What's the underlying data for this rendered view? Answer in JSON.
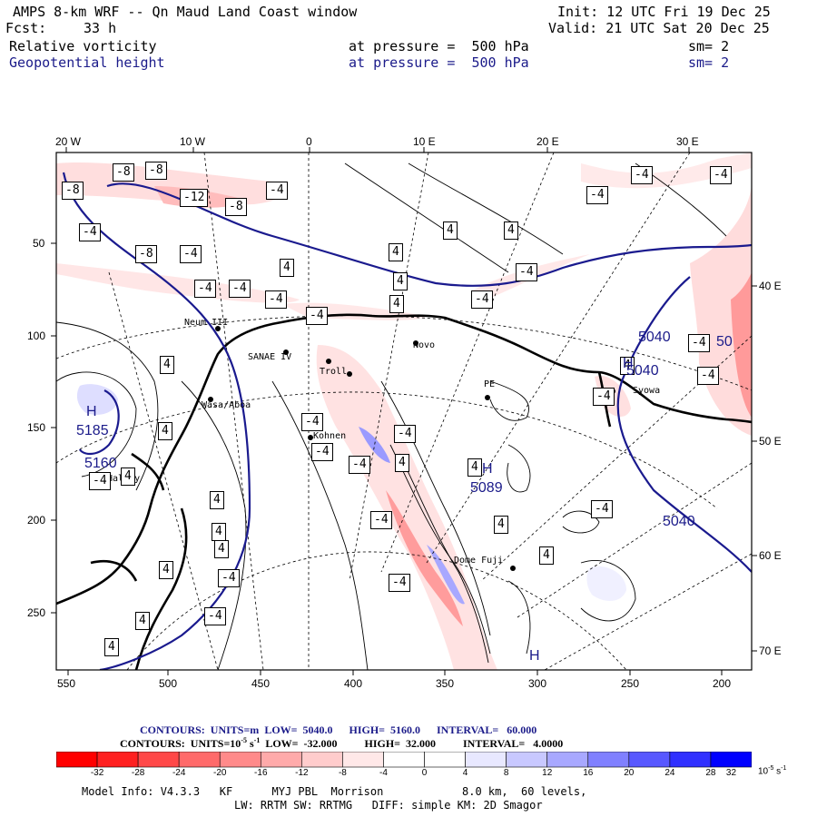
{
  "header": {
    "title": "AMPS 8-km WRF -- Qn Maud Land Coast window",
    "init": "Init: 12 UTC Fri 19 Dec 25",
    "fcst_label": "Fcst:",
    "fcst_value": "33 h",
    "valid": "Valid: 21 UTC Sat 20 Dec 25",
    "field1": {
      "name": "Relative vorticity",
      "pressure": "at pressure =  500 hPa",
      "sm": "sm= 2"
    },
    "field2": {
      "name": "Geopotential height",
      "pressure": "at pressure =  500 hPa",
      "sm": "sm= 2"
    }
  },
  "map": {
    "top_axis": [
      "20 W",
      "10 W",
      "0",
      "10 E",
      "20 E",
      "30 E"
    ],
    "left_axis": [
      "50",
      "100",
      "150",
      "200",
      "250"
    ],
    "bottom_axis": [
      "550",
      "500",
      "450",
      "400",
      "350",
      "300",
      "250",
      "200"
    ],
    "right_axis": [
      "40 E",
      "50 E",
      "60 E",
      "70 E"
    ],
    "stations": [
      {
        "name": "Neum III"
      },
      {
        "name": "SANAE IV"
      },
      {
        "name": "Novo"
      },
      {
        "name": "PE"
      },
      {
        "name": "Syowa"
      },
      {
        "name": "Kohnen"
      },
      {
        "name": "Wasa/Aboa"
      },
      {
        "name": "Halley"
      },
      {
        "name": "Dome Fuji"
      },
      {
        "name": "Troll"
      }
    ],
    "vort_labels": [
      {
        "text": "-8"
      },
      {
        "text": "-8"
      },
      {
        "text": "-8"
      },
      {
        "text": "-4"
      },
      {
        "text": "-12"
      },
      {
        "text": "-8"
      },
      {
        "text": "-4"
      },
      {
        "text": "-8"
      },
      {
        "text": "-4"
      },
      {
        "text": "-4"
      },
      {
        "text": "-4"
      },
      {
        "text": "-4"
      },
      {
        "text": "-4"
      },
      {
        "text": "4"
      },
      {
        "text": "4"
      },
      {
        "text": "4"
      },
      {
        "text": "4"
      },
      {
        "text": "-4"
      },
      {
        "text": "-4"
      },
      {
        "text": "-4"
      },
      {
        "text": "-4"
      },
      {
        "text": "-4"
      },
      {
        "text": "4"
      },
      {
        "text": "4"
      },
      {
        "text": "4"
      },
      {
        "text": "-4"
      },
      {
        "text": "-4"
      },
      {
        "text": "-4"
      },
      {
        "text": "-4"
      },
      {
        "text": "-4"
      },
      {
        "text": "-4"
      },
      {
        "text": "4"
      },
      {
        "text": "4"
      },
      {
        "text": "4"
      },
      {
        "text": "4"
      },
      {
        "text": "4"
      },
      {
        "text": "4"
      },
      {
        "text": "-4"
      },
      {
        "text": "4"
      },
      {
        "text": "4"
      },
      {
        "text": "-4"
      },
      {
        "text": "4"
      },
      {
        "text": "4"
      },
      {
        "text": "-4"
      },
      {
        "text": "4"
      },
      {
        "text": "-4"
      },
      {
        "text": "4"
      },
      {
        "text": "-4"
      },
      {
        "text": "-4"
      },
      {
        "text": "-4"
      },
      {
        "text": "4"
      }
    ],
    "height_labels": [
      {
        "text": "5040"
      },
      {
        "text": "5040"
      },
      {
        "text": "5040"
      },
      {
        "text": "5160"
      },
      {
        "text": "5185"
      },
      {
        "text": "5089"
      },
      {
        "text": "50"
      }
    ],
    "hl_marks": [
      {
        "text": "H"
      },
      {
        "text": "H"
      },
      {
        "text": "H"
      },
      {
        "text": "H"
      }
    ]
  },
  "legend": {
    "line1": {
      "prefix": "CONTOURS:  UNITS=m",
      "low": "LOW=  5040.0",
      "high": "HIGH=  5160.0",
      "interval": "INTERVAL=   60.000"
    },
    "line2": {
      "prefix": "CONTOURS:  UNITS=10",
      "exp": "-5",
      "unit_s": " s",
      "exp2": "-1",
      "low": "LOW=  -32.000",
      "high": "HIGH=  32.000",
      "interval": "INTERVAL=   4.0000"
    }
  },
  "colorbar": {
    "labels": [
      "-32",
      "-28",
      "-24",
      "-20",
      "-16",
      "-12",
      "-8",
      "-4",
      "0",
      "4",
      "8",
      "12",
      "16",
      "20",
      "24",
      "28",
      "32"
    ],
    "units": "10",
    "units_exp": "-5",
    "units_s": "s",
    "units_exp2": "-1",
    "colors": [
      "#ff0000",
      "#ff2020",
      "#ff4848",
      "#ff6a6a",
      "#ff8a8a",
      "#ffaaaa",
      "#ffcccc",
      "#ffe8e8",
      "#ffffff",
      "#ffffff",
      "#e8e8ff",
      "#c8c8ff",
      "#a8a8ff",
      "#8080ff",
      "#5858ff",
      "#3030ff",
      "#0000ff"
    ]
  },
  "footer": {
    "line1": "Model Info: V4.3.3   KF      MYJ PBL  Morrison            8.0 km,  60 levels,",
    "line2": "LW: RRTM SW: RRTMG   DIFF: simple KM: 2D Smagor"
  }
}
